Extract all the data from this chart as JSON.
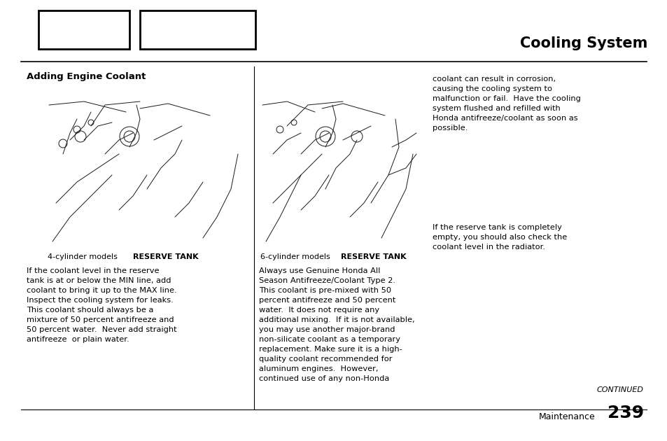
{
  "title": "Cooling System",
  "section_title": "Adding Engine Coolant",
  "left_text": "If the coolant level in the reserve\ntank is at or below the MIN line, add\ncoolant to bring it up to the MAX line.\nInspect the cooling system for leaks.\nThis coolant should always be a\nmixture of 50 percent antifreeze and\n50 percent water.  Never add straight\nantifreeze  or plain water.",
  "mid_text": "Always use Genuine Honda All\nSeason Antifreeze/Coolant Type 2.\nThis coolant is pre-mixed with 50\npercent antifreeze and 50 percent\nwater.  It does not require any\nadditional mixing.  If it is not available,\nyou may use another major-brand\nnon-silicate coolant as a temporary\nreplacement. Make sure it is a high-\nquality coolant recommended for\naluminum engines.  However,\ncontinued use of any non-Honda",
  "right_text1": "coolant can result in corrosion,\ncausing the cooling system to\nmalfunction or fail.  Have the cooling\nsystem flushed and refilled with\nHonda antifreeze/coolant as soon as\npossible.",
  "right_text2": "If the reserve tank is completely\nempty, you should also check the\ncoolant level in the radiator.",
  "caption_left_normal": "4-cylinder models",
  "caption_left_bold": "RESERVE TANK",
  "caption_mid_normal": "6-cylinder models",
  "caption_mid_bold": "RESERVE TANK",
  "footer_continued": "CONTINUED",
  "footer_label": "Maintenance",
  "footer_page": "239",
  "bg_color": "#ffffff",
  "text_color": "#000000",
  "title_fontsize": 15,
  "section_fontsize": 9.5,
  "body_fontsize": 8.2,
  "caption_fontsize": 8,
  "footer_fontsize": 9
}
